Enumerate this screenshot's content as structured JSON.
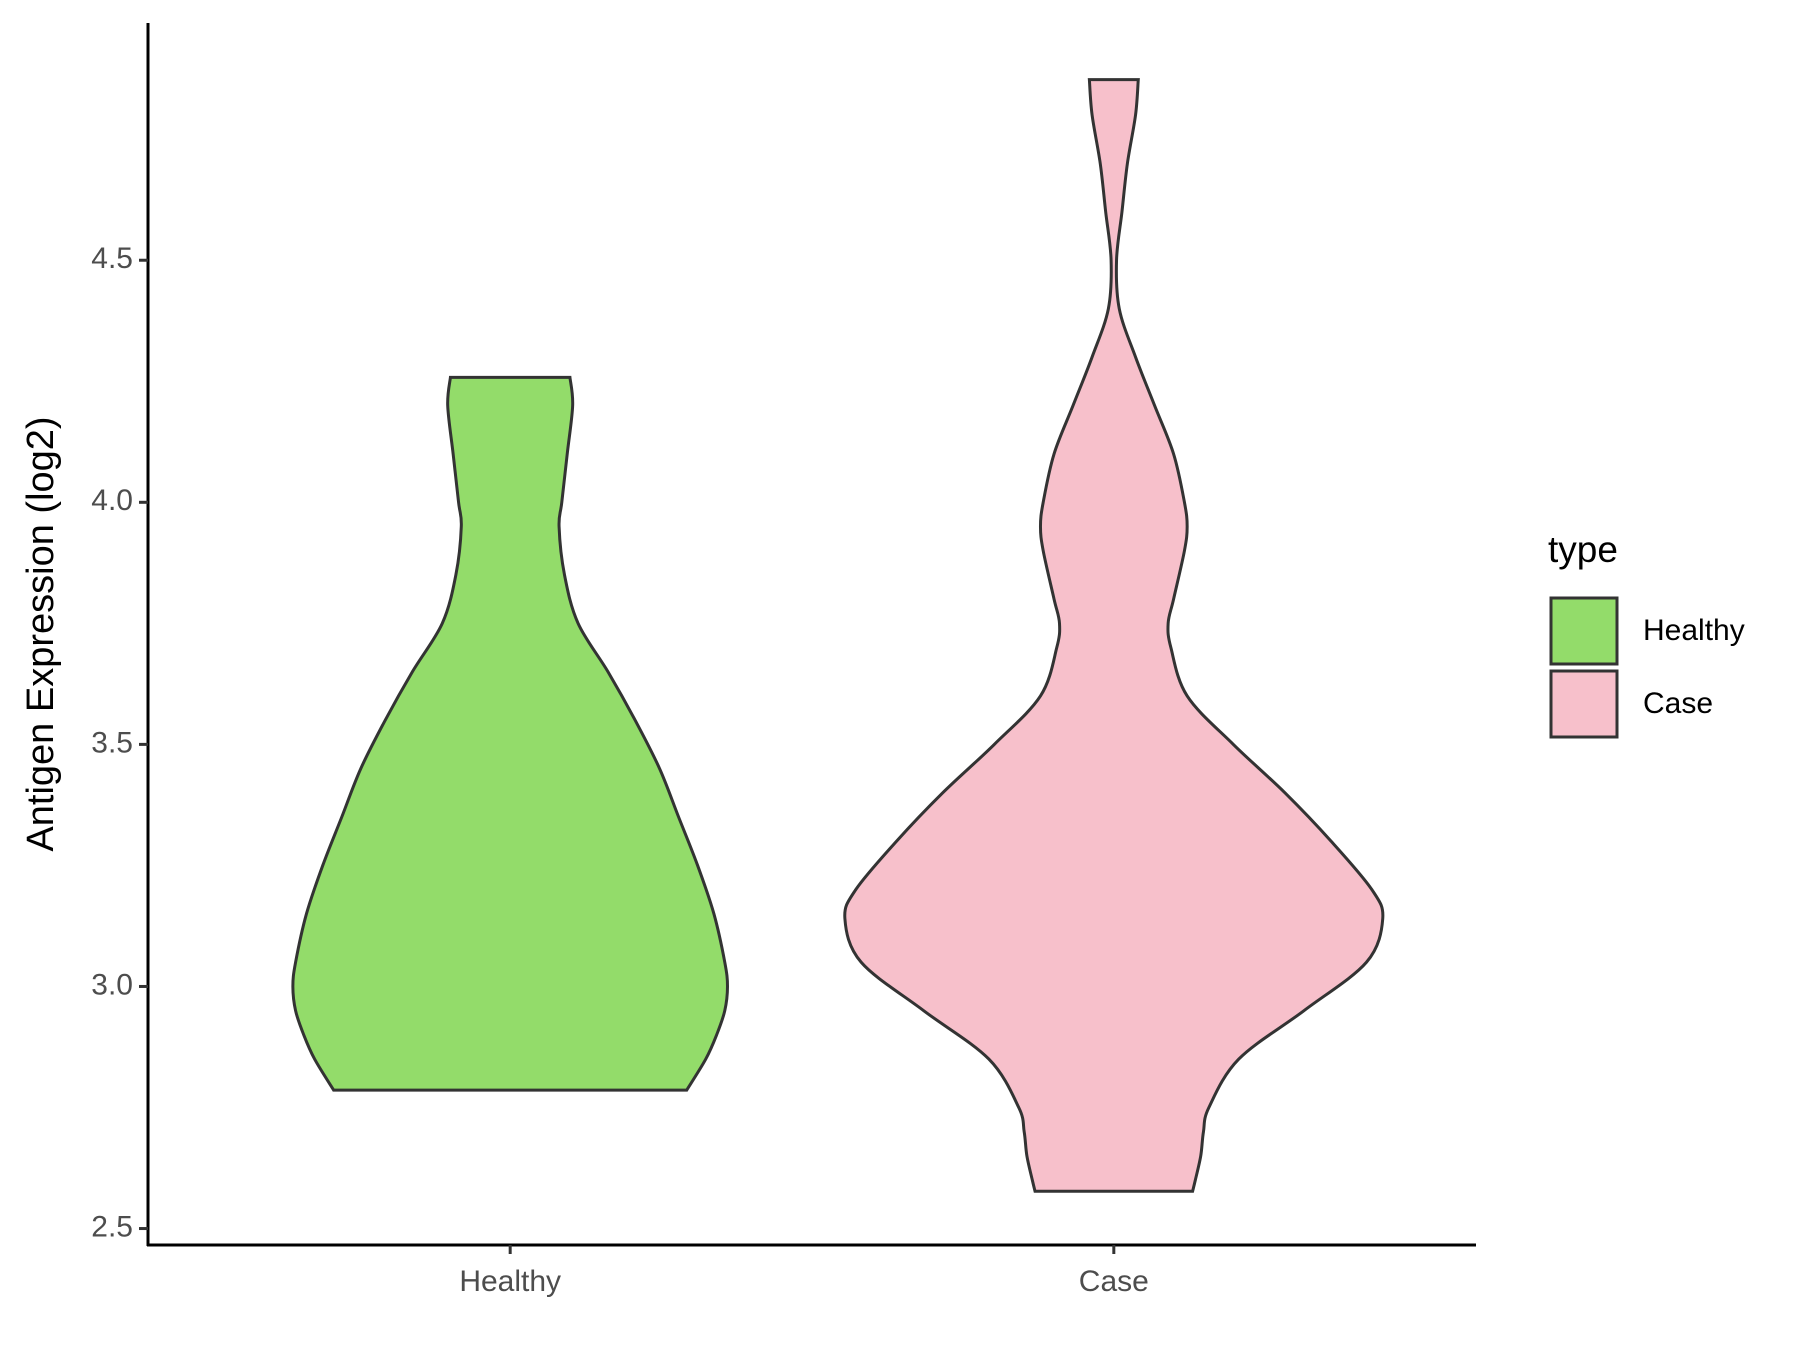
{
  "chart_data": {
    "type": "violin",
    "y_label": "Antigen Expression (log2)",
    "categories": [
      "Healthy",
      "Case"
    ],
    "legend_title": "type",
    "legend_position": "right",
    "ylim": [
      2.466,
      4.99
    ],
    "yticks": [
      2.5,
      {
        "value": 3,
        "label": "3.0"
      },
      3.5,
      {
        "value": 4,
        "label": "4.0"
      },
      4.5
    ],
    "series": [
      {
        "name": "Healthy",
        "color": "#93dc6a",
        "values": [
          4.258,
          4.2,
          4.1,
          4.0,
          3.95,
          3.85,
          3.75,
          3.65,
          3.55,
          3.45,
          3.35,
          3.25,
          3.15,
          3.05,
          3.0,
          2.95,
          2.9,
          2.85,
          2.786
        ],
        "density": [
          0.22,
          0.23,
          0.21,
          0.19,
          0.18,
          0.2,
          0.25,
          0.36,
          0.46,
          0.55,
          0.62,
          0.69,
          0.75,
          0.79,
          0.8,
          0.79,
          0.76,
          0.72,
          0.65
        ]
      },
      {
        "name": "Case",
        "color": "#f7c0cb",
        "values": [
          4.873,
          4.8,
          4.7,
          4.6,
          4.5,
          4.4,
          4.3,
          4.2,
          4.1,
          4.0,
          3.95,
          3.9,
          3.8,
          3.75,
          3.7,
          3.6,
          3.5,
          3.4,
          3.3,
          3.2,
          3.14,
          3.05,
          2.95,
          2.85,
          2.75,
          2.7,
          2.65,
          2.6,
          2.577
        ],
        "density": [
          0.09,
          0.08,
          0.05,
          0.03,
          0.01,
          0.02,
          0.08,
          0.15,
          0.22,
          0.26,
          0.27,
          0.26,
          0.22,
          0.2,
          0.21,
          0.27,
          0.44,
          0.63,
          0.8,
          0.95,
          0.99,
          0.93,
          0.7,
          0.46,
          0.35,
          0.33,
          0.32,
          0.3,
          0.29
        ]
      }
    ]
  }
}
